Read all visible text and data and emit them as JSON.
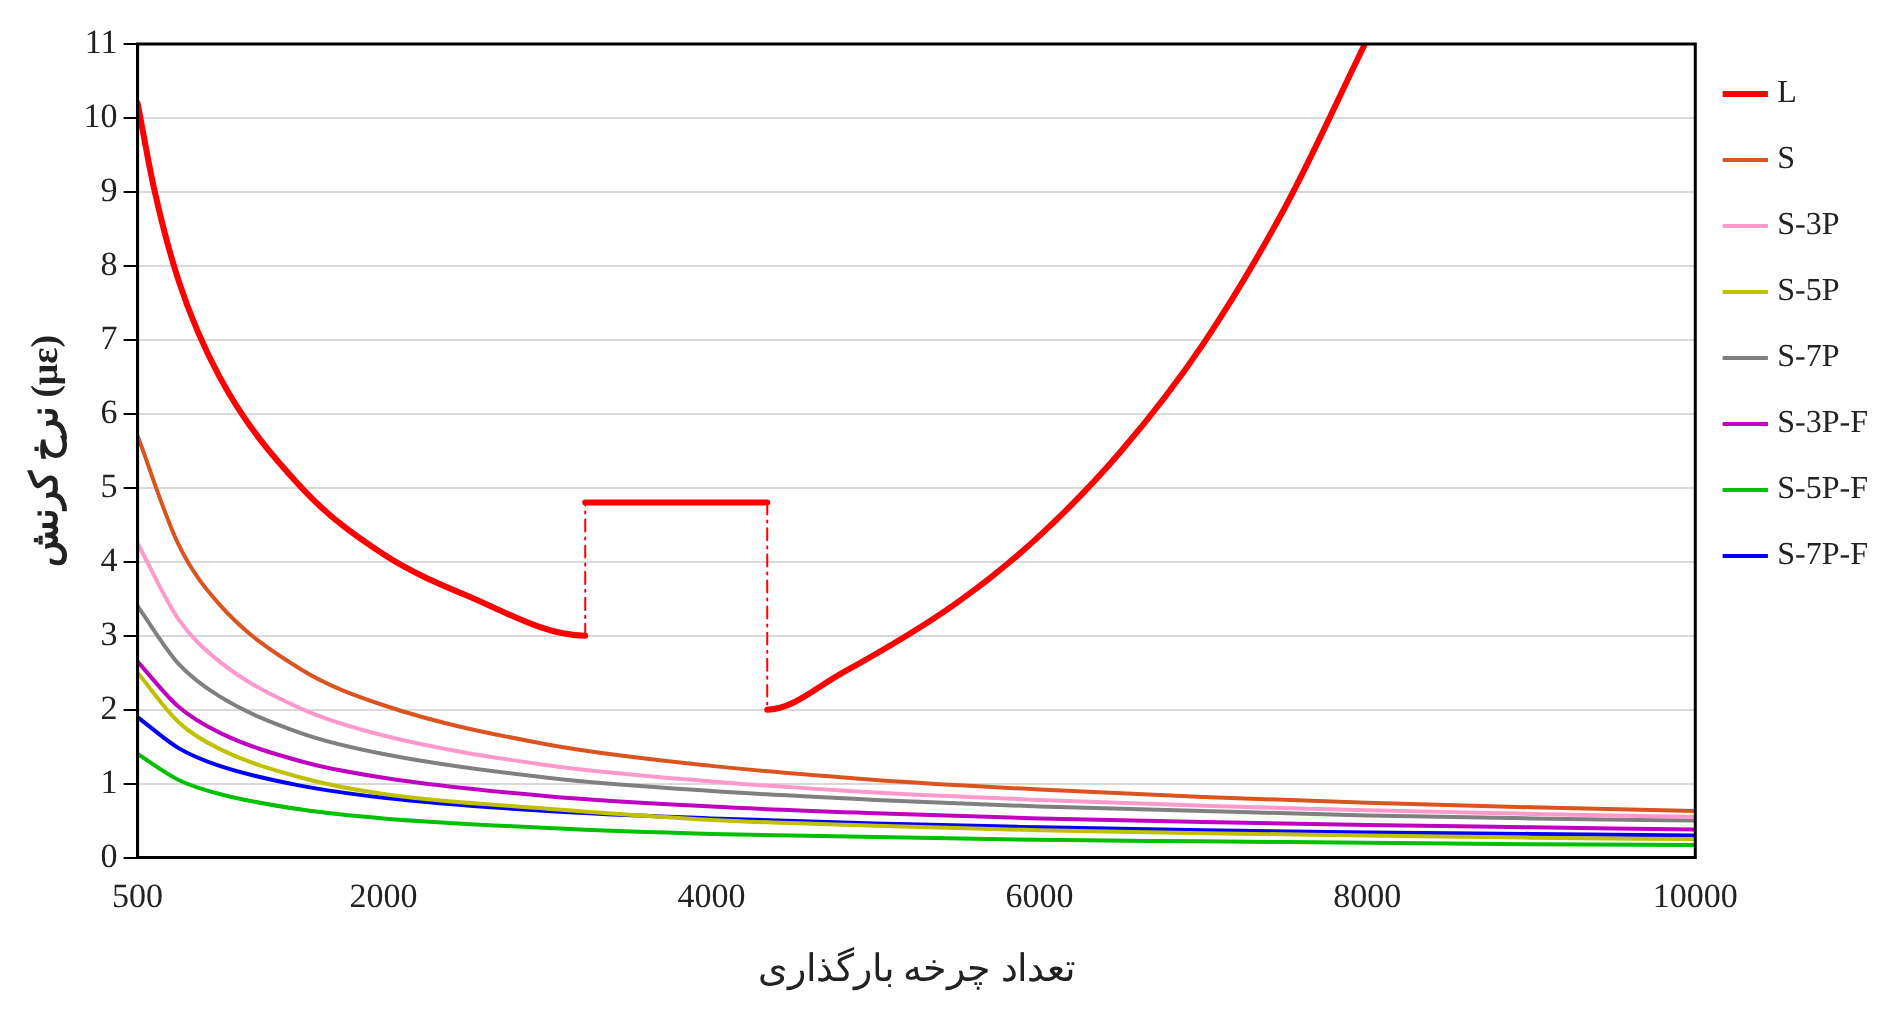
{
  "chart_data": {
    "type": "line",
    "xlabel": "تعداد چرخه بارگذاری",
    "ylabel": "نرخ کرنش (με)",
    "xlim": [
      500,
      10000
    ],
    "xticks": [
      500,
      2000,
      4000,
      6000,
      8000,
      10000
    ],
    "ylim": [
      0,
      11
    ],
    "yticks": [
      0,
      1,
      2,
      3,
      4,
      5,
      6,
      7,
      8,
      9,
      10,
      11
    ],
    "grid": "y",
    "legend": "right",
    "marker": "none",
    "line_style": "solid",
    "x": [
      500,
      750,
      1000,
      1500,
      2000,
      3000,
      4000,
      5000,
      6000,
      7000,
      8000,
      9000,
      10000
    ],
    "series": [
      {
        "name": "L",
        "color": "#ff0000",
        "x": [
          500,
          600,
          750,
          1000,
          1500,
          2000,
          2500,
          3230,
          3230,
          4340,
          4340,
          4800,
          5500,
          6000,
          6500,
          7000,
          7500,
          7985
        ],
        "values": [
          10.2,
          9.05,
          7.8,
          6.5,
          5.0,
          4.1,
          3.55,
          3.0,
          4.8,
          4.8,
          2.0,
          2.5,
          3.45,
          4.35,
          5.5,
          6.95,
          8.8,
          11
        ]
      },
      {
        "name": "S",
        "color": "#d9541e",
        "values": [
          5.7,
          4.23,
          3.42,
          2.54,
          2.06,
          1.53,
          1.24,
          1.05,
          0.92,
          0.82,
          0.74,
          0.68,
          0.63
        ]
      },
      {
        "name": "S-3P",
        "color": "#ff99cc",
        "values": [
          4.25,
          3.22,
          2.65,
          2.01,
          1.65,
          1.25,
          1.03,
          0.88,
          0.78,
          0.7,
          0.64,
          0.59,
          0.55
        ]
      },
      {
        "name": "S-5P",
        "color": "#c0c000",
        "values": [
          2.5,
          1.83,
          1.47,
          1.08,
          0.86,
          0.66,
          0.51,
          0.43,
          0.37,
          0.33,
          0.3,
          0.27,
          0.25
        ]
      },
      {
        "name": "S-7P",
        "color": "#808080",
        "values": [
          3.4,
          2.62,
          2.18,
          1.68,
          1.4,
          1.08,
          0.9,
          0.78,
          0.69,
          0.63,
          0.57,
          0.53,
          0.5
        ]
      },
      {
        "name": "S-3P-F",
        "color": "#c000c0",
        "values": [
          2.65,
          2.04,
          1.69,
          1.3,
          1.08,
          0.83,
          0.69,
          0.6,
          0.53,
          0.48,
          0.44,
          0.41,
          0.38
        ]
      },
      {
        "name": "S-5P-F",
        "color": "#00c000",
        "values": [
          1.4,
          1.05,
          0.86,
          0.65,
          0.53,
          0.4,
          0.32,
          0.28,
          0.24,
          0.22,
          0.2,
          0.18,
          0.17
        ]
      },
      {
        "name": "S-7P-F",
        "color": "#0000ff",
        "values": [
          1.9,
          1.48,
          1.24,
          0.97,
          0.81,
          0.63,
          0.53,
          0.46,
          0.41,
          0.37,
          0.34,
          0.32,
          0.3
        ]
      }
    ]
  }
}
